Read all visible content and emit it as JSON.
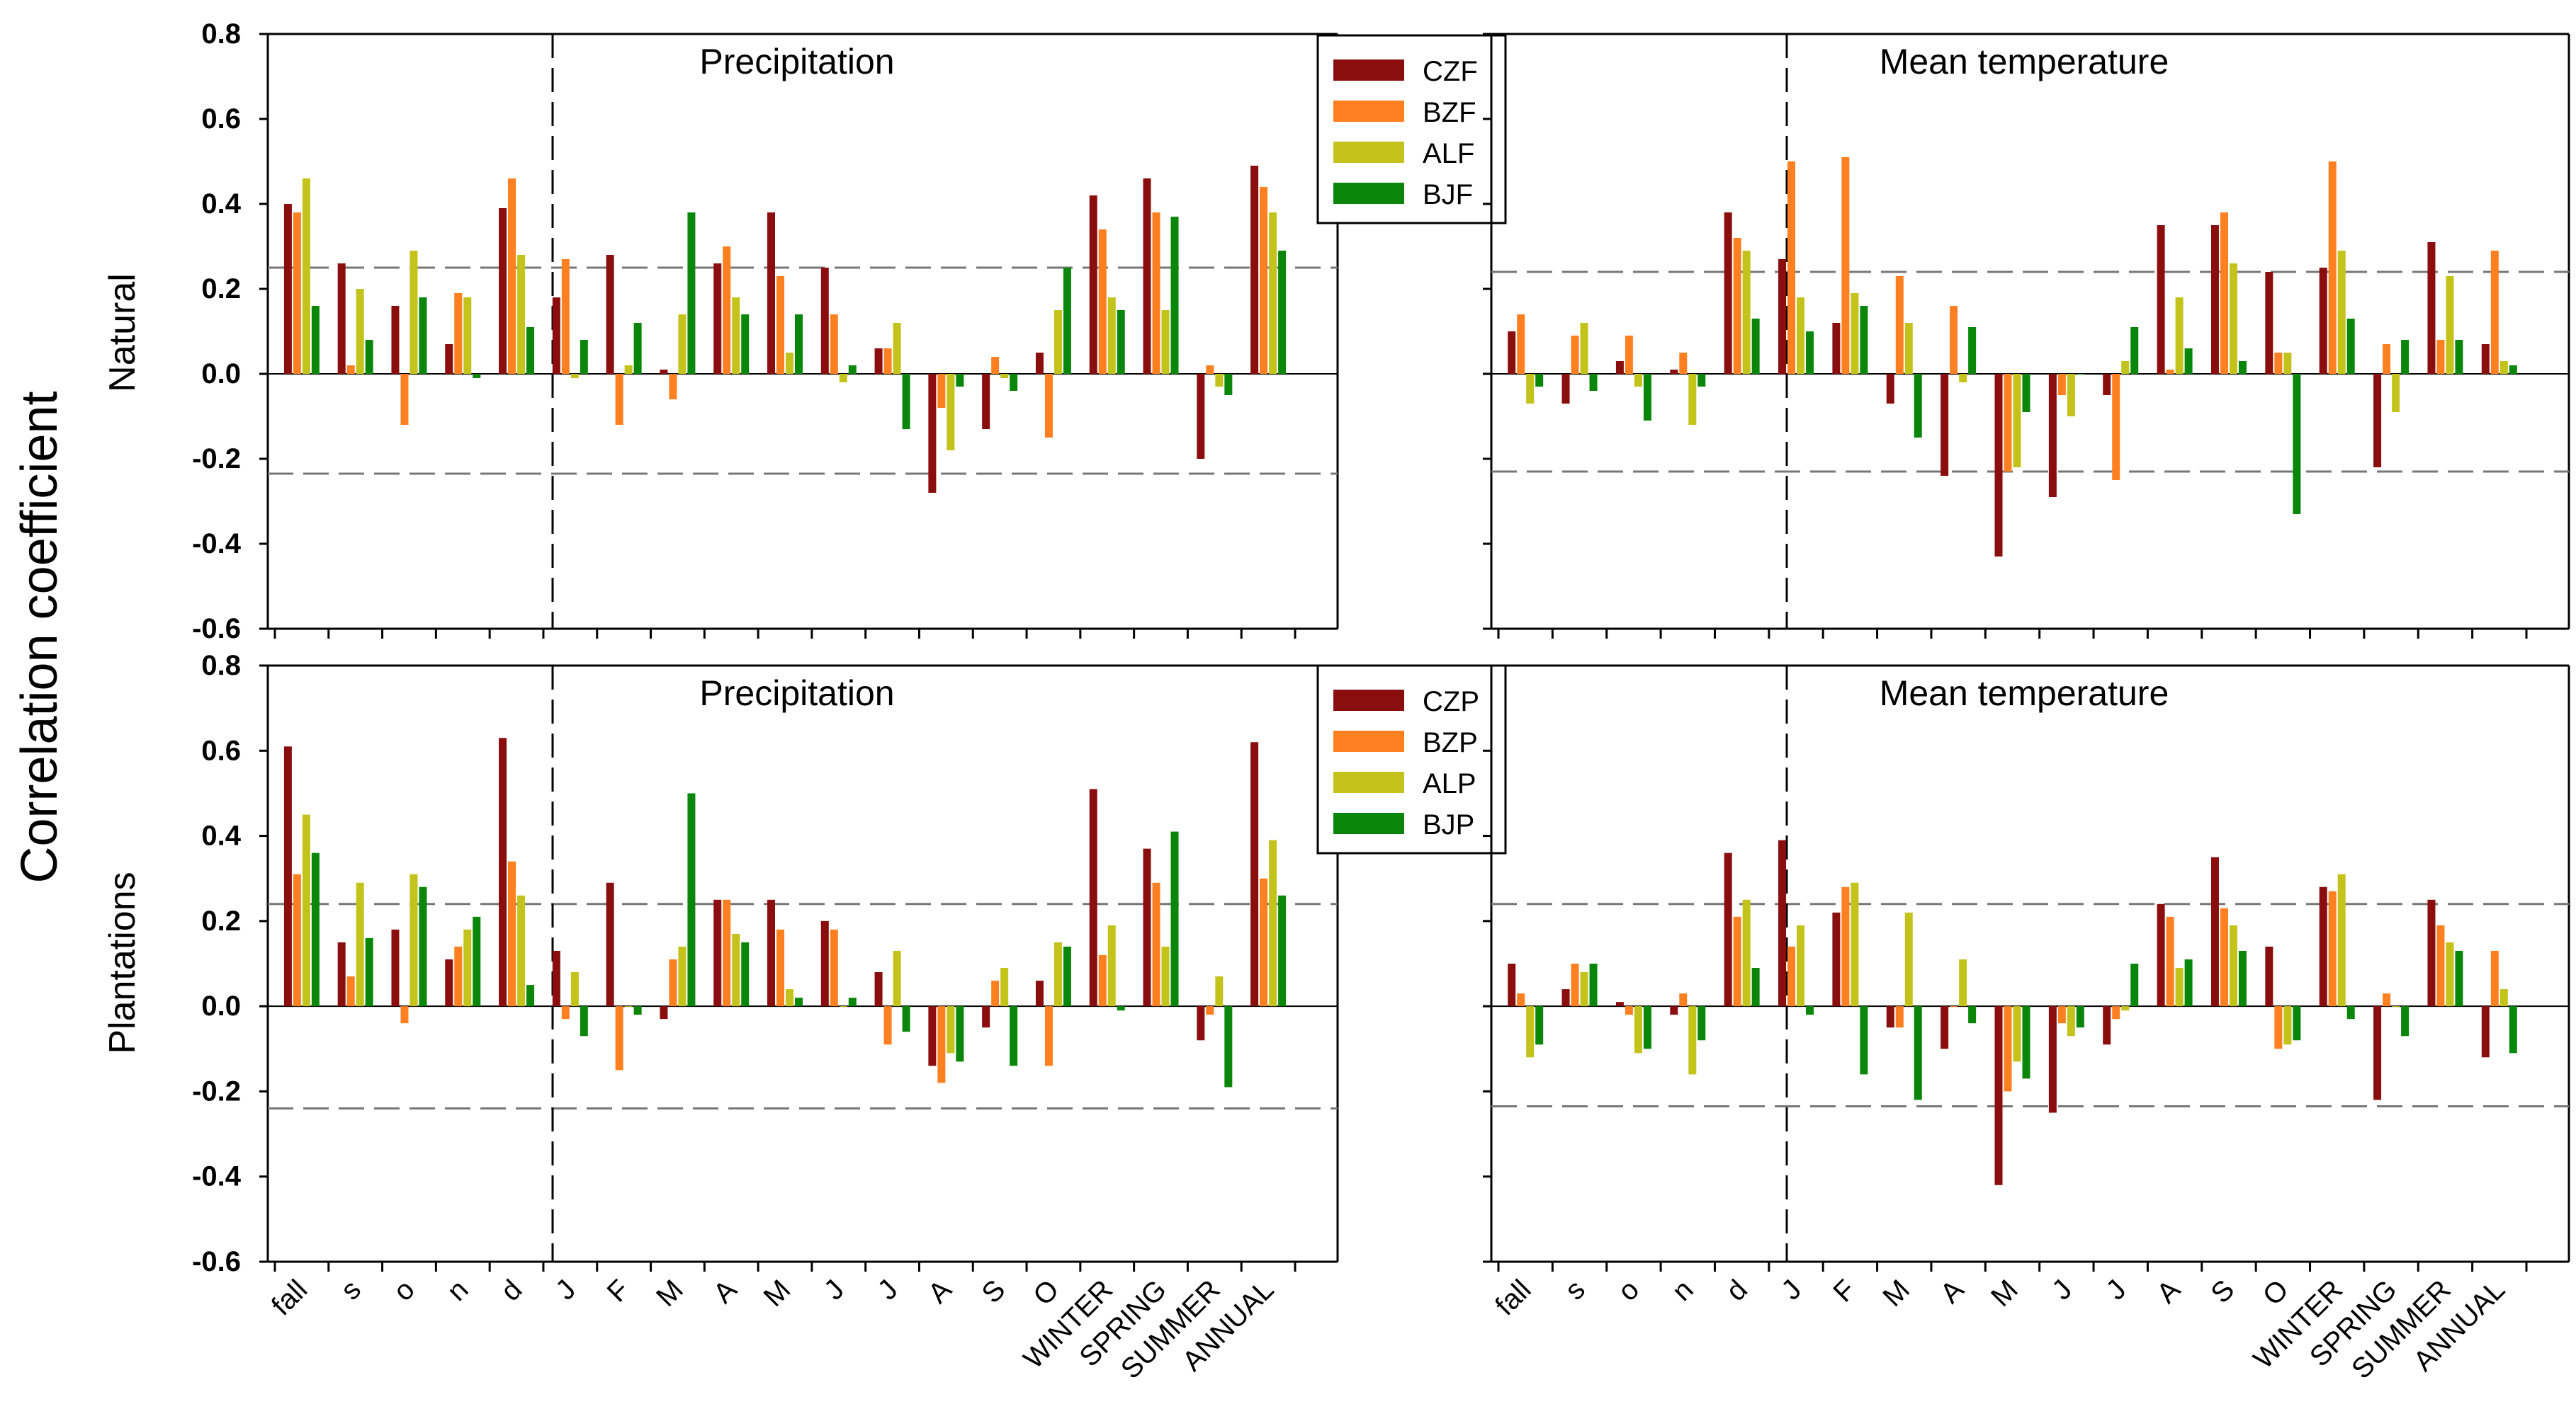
{
  "figure": {
    "y_axis_label": "Correlation coefficient",
    "row_labels": [
      "Natural",
      "Plantations"
    ]
  },
  "chart_data": [
    {
      "type": "bar",
      "row": "Natural",
      "title": "Precipitation",
      "categories": [
        "fall",
        "s",
        "o",
        "n",
        "d",
        "J",
        "F",
        "M",
        "A",
        "M",
        "J",
        "J",
        "A",
        "S",
        "O",
        "WINTER",
        "SPRING",
        "SUMMER",
        "ANNUAL"
      ],
      "ylim": [
        -0.6,
        0.8
      ],
      "yticks": [
        "-0.6",
        "-0.4",
        "-0.2",
        "0.0",
        "0.2",
        "0.4",
        "0.6",
        "0.8"
      ],
      "significance_levels": [
        0.25,
        -0.235
      ],
      "legend_position": "top-right",
      "series": [
        {
          "name": "CZF",
          "color": "#8b0e0e",
          "values": [
            0.4,
            0.26,
            0.16,
            0.07,
            0.39,
            0.18,
            0.28,
            0.01,
            0.26,
            0.38,
            0.25,
            0.06,
            -0.28,
            -0.13,
            0.05,
            0.42,
            0.46,
            -0.2,
            0.49
          ]
        },
        {
          "name": "BZF",
          "color": "#ff8020",
          "values": [
            0.38,
            0.02,
            -0.12,
            0.19,
            0.46,
            0.27,
            -0.12,
            -0.06,
            0.3,
            0.23,
            0.14,
            0.06,
            -0.08,
            0.04,
            -0.15,
            0.34,
            0.38,
            0.02,
            0.44
          ]
        },
        {
          "name": "ALF",
          "color": "#c3c31b",
          "values": [
            0.46,
            0.2,
            0.29,
            0.18,
            0.28,
            -0.01,
            0.02,
            0.14,
            0.18,
            0.05,
            -0.02,
            0.12,
            -0.18,
            -0.01,
            0.15,
            0.18,
            0.15,
            -0.03,
            0.38
          ]
        },
        {
          "name": "BJF",
          "color": "#0a870a",
          "values": [
            0.16,
            0.08,
            0.18,
            -0.01,
            0.11,
            0.08,
            0.12,
            0.38,
            0.14,
            0.14,
            0.02,
            -0.13,
            -0.03,
            -0.04,
            0.25,
            0.15,
            0.37,
            -0.05,
            0.29
          ]
        }
      ]
    },
    {
      "type": "bar",
      "row": "Natural",
      "title": "Mean temperature",
      "categories": [
        "fall",
        "s",
        "o",
        "n",
        "d",
        "J",
        "F",
        "M",
        "A",
        "M",
        "J",
        "J",
        "A",
        "S",
        "O",
        "WINTER",
        "SPRING",
        "SUMMER",
        "ANNUAL"
      ],
      "ylim": [
        -0.6,
        0.8
      ],
      "significance_levels": [
        0.24,
        -0.23
      ],
      "series": [
        {
          "name": "CZF",
          "color": "#8b0e0e",
          "values": [
            0.1,
            -0.07,
            0.03,
            0.01,
            0.38,
            0.27,
            0.12,
            -0.07,
            -0.24,
            -0.43,
            -0.29,
            -0.05,
            0.35,
            0.35,
            0.24,
            0.25,
            -0.22,
            0.31,
            0.07
          ]
        },
        {
          "name": "BZF",
          "color": "#ff8020",
          "values": [
            0.14,
            0.09,
            0.09,
            0.05,
            0.32,
            0.5,
            0.51,
            0.23,
            0.16,
            -0.23,
            -0.05,
            -0.25,
            0.01,
            0.38,
            0.05,
            0.5,
            0.07,
            0.08,
            0.29
          ]
        },
        {
          "name": "ALF",
          "color": "#c3c31b",
          "values": [
            -0.07,
            0.12,
            -0.03,
            -0.12,
            0.29,
            0.18,
            0.19,
            0.12,
            -0.02,
            -0.22,
            -0.1,
            0.03,
            0.18,
            0.26,
            0.05,
            0.29,
            -0.09,
            0.23,
            0.03
          ]
        },
        {
          "name": "BJF",
          "color": "#0a870a",
          "values": [
            -0.03,
            -0.04,
            -0.11,
            -0.03,
            0.13,
            0.1,
            0.16,
            -0.15,
            0.11,
            -0.09,
            0.0,
            0.11,
            0.06,
            0.03,
            -0.33,
            0.13,
            0.08,
            0.08,
            0.02
          ]
        }
      ]
    },
    {
      "type": "bar",
      "row": "Plantations",
      "title": "Precipitation",
      "categories": [
        "fall",
        "s",
        "o",
        "n",
        "d",
        "J",
        "F",
        "M",
        "A",
        "M",
        "J",
        "J",
        "A",
        "S",
        "O",
        "WINTER",
        "SPRING",
        "SUMMER",
        "ANNUAL"
      ],
      "ylim": [
        -0.6,
        0.8
      ],
      "yticks": [
        "-0.6",
        "-0.4",
        "-0.2",
        "0.0",
        "0.2",
        "0.4",
        "0.6",
        "0.8"
      ],
      "significance_levels": [
        0.24,
        -0.24
      ],
      "legend_position": "top-right",
      "series": [
        {
          "name": "CZP",
          "color": "#8b0e0e",
          "values": [
            0.61,
            0.15,
            0.18,
            0.11,
            0.63,
            0.13,
            0.29,
            -0.03,
            0.25,
            0.25,
            0.2,
            0.08,
            -0.14,
            -0.05,
            0.06,
            0.51,
            0.37,
            -0.08,
            0.62
          ]
        },
        {
          "name": "BZP",
          "color": "#ff8020",
          "values": [
            0.31,
            0.07,
            -0.04,
            0.14,
            0.34,
            -0.03,
            -0.15,
            0.11,
            0.25,
            0.18,
            0.18,
            -0.09,
            -0.18,
            0.06,
            -0.14,
            0.12,
            0.29,
            -0.02,
            0.3
          ]
        },
        {
          "name": "ALP",
          "color": "#c3c31b",
          "values": [
            0.45,
            0.29,
            0.31,
            0.18,
            0.26,
            0.08,
            0.0,
            0.14,
            0.17,
            0.04,
            0.0,
            0.13,
            -0.11,
            0.09,
            0.15,
            0.19,
            0.14,
            0.07,
            0.39
          ]
        },
        {
          "name": "BJP",
          "color": "#0a870a",
          "values": [
            0.36,
            0.16,
            0.28,
            0.21,
            0.05,
            -0.07,
            -0.02,
            0.5,
            0.15,
            0.02,
            0.02,
            -0.06,
            -0.13,
            -0.14,
            0.14,
            -0.01,
            0.41,
            -0.19,
            0.26
          ]
        }
      ]
    },
    {
      "type": "bar",
      "row": "Plantations",
      "title": "Mean temperature",
      "categories": [
        "fall",
        "s",
        "o",
        "n",
        "d",
        "J",
        "F",
        "M",
        "A",
        "M",
        "J",
        "J",
        "A",
        "S",
        "O",
        "WINTER",
        "SPRING",
        "SUMMER",
        "ANNUAL"
      ],
      "ylim": [
        -0.6,
        0.8
      ],
      "significance_levels": [
        0.24,
        -0.235
      ],
      "series": [
        {
          "name": "CZP",
          "color": "#8b0e0e",
          "values": [
            0.1,
            0.04,
            0.01,
            -0.02,
            0.36,
            0.39,
            0.22,
            -0.05,
            -0.1,
            -0.42,
            -0.25,
            -0.09,
            0.24,
            0.35,
            0.14,
            0.28,
            -0.22,
            0.25,
            -0.12
          ]
        },
        {
          "name": "BZP",
          "color": "#ff8020",
          "values": [
            0.03,
            0.1,
            -0.02,
            0.03,
            0.21,
            0.14,
            0.28,
            -0.05,
            0.0,
            -0.2,
            -0.04,
            -0.03,
            0.21,
            0.23,
            -0.1,
            0.27,
            0.03,
            0.19,
            0.13
          ]
        },
        {
          "name": "ALP",
          "color": "#c3c31b",
          "values": [
            -0.12,
            0.08,
            -0.11,
            -0.16,
            0.25,
            0.19,
            0.29,
            0.22,
            0.11,
            -0.13,
            -0.07,
            -0.01,
            0.09,
            0.19,
            -0.09,
            0.31,
            0.0,
            0.15,
            0.04
          ]
        },
        {
          "name": "BJP",
          "color": "#0a870a",
          "values": [
            -0.09,
            0.1,
            -0.1,
            -0.08,
            0.09,
            -0.02,
            -0.16,
            -0.22,
            -0.04,
            -0.17,
            -0.05,
            0.1,
            0.11,
            0.13,
            -0.08,
            -0.03,
            -0.07,
            0.13,
            -0.11
          ]
        }
      ]
    }
  ]
}
